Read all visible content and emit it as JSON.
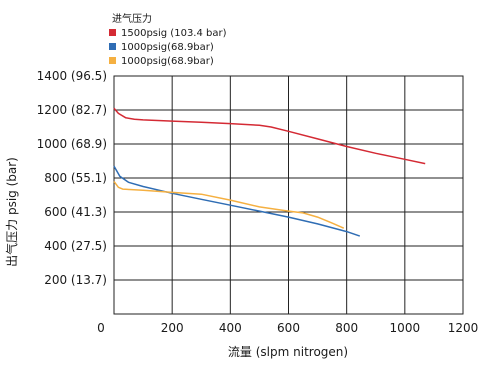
{
  "chart_data": {
    "type": "line",
    "xlabel": "流量 (slpm nitrogen)",
    "ylabel": "出气压力 psig (bar)",
    "xlim": [
      0,
      1200
    ],
    "ylim": [
      0,
      1400
    ],
    "x_ticks": [
      0,
      200,
      400,
      600,
      800,
      1000,
      1200
    ],
    "y_ticks": [
      {
        "value": 200,
        "label": "200 (13.7)"
      },
      {
        "value": 400,
        "label": "400 (27.5)"
      },
      {
        "value": 600,
        "label": "600 (41.3)"
      },
      {
        "value": 800,
        "label": "800 (55.1)"
      },
      {
        "value": 1000,
        "label": "1000 (68.9)"
      },
      {
        "value": 1200,
        "label": "1200 (82.7)"
      },
      {
        "value": 1400,
        "label": "1400 (96.5)"
      }
    ],
    "grid": true,
    "legend": {
      "title": "进气压力",
      "placement": "top-left"
    },
    "series": [
      {
        "name": "1500psig (103.4 bar)",
        "color": "#d42a34",
        "points": [
          [
            0,
            1210
          ],
          [
            15,
            1180
          ],
          [
            40,
            1155
          ],
          [
            70,
            1145
          ],
          [
            100,
            1142
          ],
          [
            200,
            1135
          ],
          [
            300,
            1128
          ],
          [
            400,
            1120
          ],
          [
            500,
            1110
          ],
          [
            540,
            1100
          ],
          [
            600,
            1075
          ],
          [
            700,
            1030
          ],
          [
            800,
            985
          ],
          [
            900,
            945
          ],
          [
            1000,
            910
          ],
          [
            1070,
            885
          ]
        ]
      },
      {
        "name": "1000psig(68.9bar)",
        "color": "#2f6db4",
        "points": [
          [
            0,
            870
          ],
          [
            20,
            810
          ],
          [
            50,
            775
          ],
          [
            100,
            750
          ],
          [
            200,
            710
          ],
          [
            300,
            675
          ],
          [
            400,
            640
          ],
          [
            500,
            605
          ],
          [
            600,
            570
          ],
          [
            700,
            530
          ],
          [
            800,
            485
          ],
          [
            845,
            458
          ]
        ]
      },
      {
        "name": "1000psig(68.9bar)",
        "color": "#f5b041",
        "points": [
          [
            0,
            780
          ],
          [
            15,
            745
          ],
          [
            30,
            735
          ],
          [
            100,
            728
          ],
          [
            200,
            715
          ],
          [
            300,
            705
          ],
          [
            400,
            670
          ],
          [
            500,
            630
          ],
          [
            600,
            605
          ],
          [
            650,
            595
          ],
          [
            700,
            570
          ],
          [
            750,
            535
          ],
          [
            790,
            505
          ]
        ]
      }
    ]
  }
}
